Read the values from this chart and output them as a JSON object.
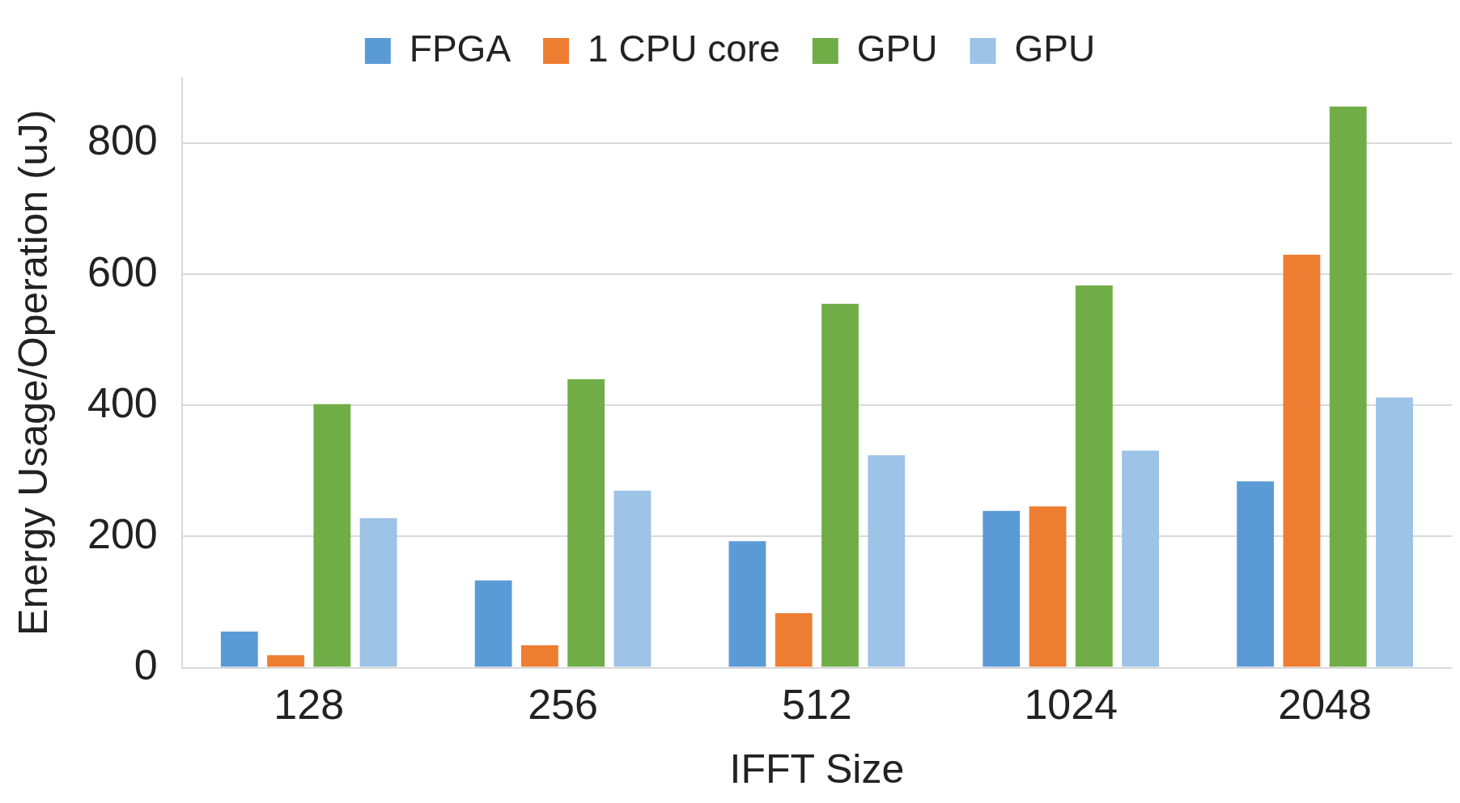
{
  "chart_data": {
    "type": "bar",
    "xlabel": "IFFT Size",
    "ylabel": "Energy Usage/Operation (uJ)",
    "categories": [
      "128",
      "256",
      "512",
      "1024",
      "2048"
    ],
    "series": [
      {
        "name": "FPGA",
        "color": "#5b9bd5",
        "values": [
          55,
          133,
          193,
          239,
          284
        ]
      },
      {
        "name": "1 CPU core",
        "color": "#ed7d31",
        "values": [
          19,
          34,
          83,
          246,
          630
        ]
      },
      {
        "name": "GPU",
        "color": "#70ad47",
        "values": [
          402,
          440,
          555,
          583,
          856
        ]
      },
      {
        "name": "GPU",
        "color": "#9dc3e6",
        "values": [
          228,
          270,
          324,
          331,
          412
        ]
      }
    ],
    "ylim": [
      0,
      900
    ],
    "yticks": [
      0,
      200,
      400,
      600,
      800
    ],
    "grid": "y",
    "legend": "top"
  }
}
